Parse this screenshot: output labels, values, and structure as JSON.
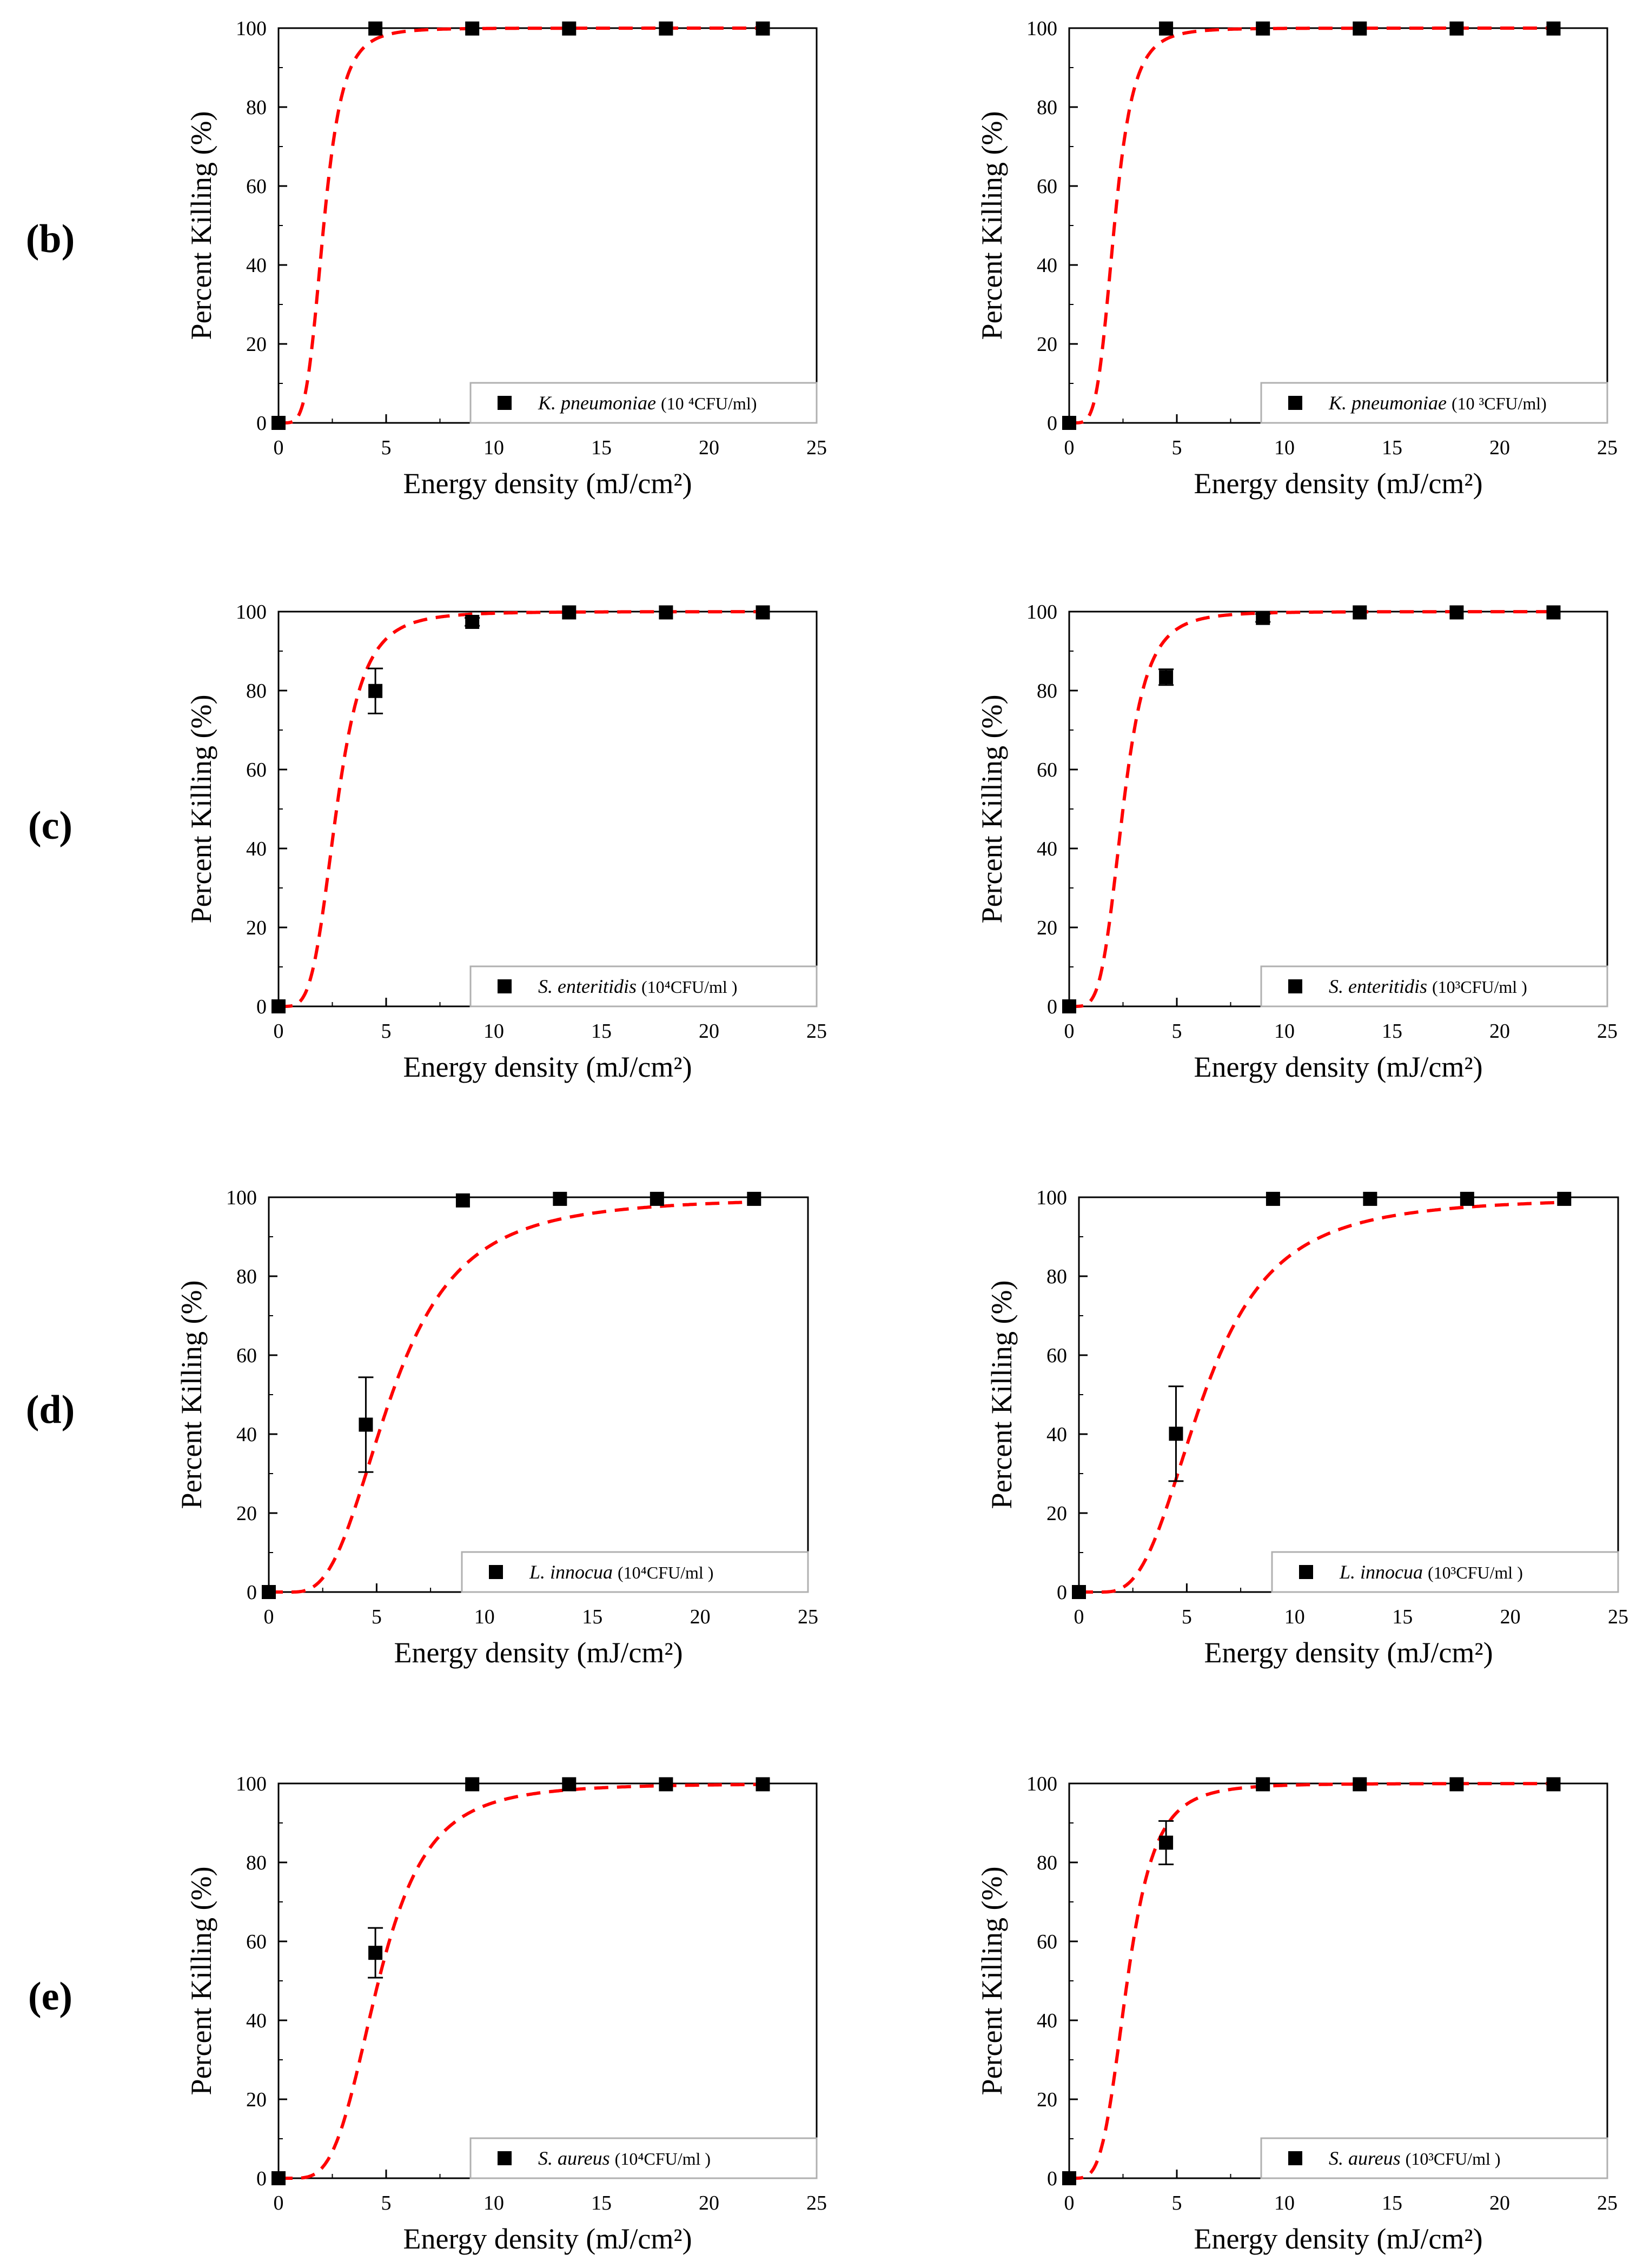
{
  "row_labels": [
    "(b)",
    "(c)",
    "(d)",
    "(e)"
  ],
  "colors": {
    "fit": "#ff0000",
    "marker": "#000000",
    "axis": "#000000",
    "legend_border": "#b0b0b0"
  },
  "chart_data": [
    {
      "type": "scatter",
      "id": "b-left",
      "row": "(b)",
      "xlabel": "Energy density (mJ/cm²)",
      "ylabel": "Percent Killing (%)",
      "xlim": [
        0,
        25
      ],
      "ylim": [
        0,
        100
      ],
      "xticks": [
        "0",
        "5",
        "10",
        "15",
        "20",
        "25"
      ],
      "yticks": [
        "0",
        "20",
        "40",
        "60",
        "80",
        "100"
      ],
      "legend": {
        "species": "K. pneumoniae",
        "conc": "(10 ⁴CFU/ml)",
        "position": "bottom-right"
      },
      "x": [
        0,
        4.5,
        9,
        13.5,
        18,
        22.5
      ],
      "y": [
        0,
        99.9,
        99.9,
        99.9,
        99.9,
        99.9
      ],
      "err": [
        0,
        0,
        0,
        0,
        0,
        0
      ],
      "fit": {
        "type": "dashed logistic",
        "x50": 2.0,
        "slope": 4.5,
        "x0": 0.1
      }
    },
    {
      "type": "scatter",
      "id": "b-right",
      "row": "(b)",
      "xlabel": "Energy density (mJ/cm²)",
      "ylabel": "Percent Killing (%)",
      "xlim": [
        0,
        25
      ],
      "ylim": [
        0,
        100
      ],
      "xticks": [
        "0",
        "5",
        "10",
        "15",
        "20",
        "25"
      ],
      "yticks": [
        "0",
        "20",
        "40",
        "60",
        "80",
        "100"
      ],
      "legend": {
        "species": "K. pneumoniae",
        "conc": "(10 ³CFU/ml)",
        "position": "bottom-right"
      },
      "x": [
        0,
        4.5,
        9,
        13.5,
        18,
        22.5
      ],
      "y": [
        0,
        99.9,
        99.9,
        99.9,
        99.9,
        99.9
      ],
      "err": [
        0,
        0,
        0,
        0,
        0,
        0
      ],
      "fit": {
        "type": "dashed logistic",
        "x50": 2.0,
        "slope": 4.5,
        "x0": 0.1
      }
    },
    {
      "type": "scatter",
      "id": "c-left",
      "row": "(c)",
      "xlabel": "Energy density (mJ/cm²)",
      "ylabel": "Percent Killing (%)",
      "xlim": [
        0,
        25
      ],
      "ylim": [
        0,
        100
      ],
      "xticks": [
        "0",
        "5",
        "10",
        "15",
        "20",
        "25"
      ],
      "yticks": [
        "0",
        "20",
        "40",
        "60",
        "80",
        "100"
      ],
      "legend": {
        "species": "S. enteritidis",
        "conc": "(10⁴CFU/ml )",
        "position": "bottom-right"
      },
      "x": [
        0,
        4.5,
        9,
        13.5,
        18,
        22.5
      ],
      "y": [
        0,
        79.9,
        97.4,
        99.8,
        99.8,
        99.8
      ],
      "err": [
        0,
        5.7,
        1.0,
        0,
        0,
        0
      ],
      "fit": {
        "type": "dashed logistic",
        "x50": 2.6,
        "slope": 4.1,
        "x0": 0.1
      }
    },
    {
      "type": "scatter",
      "id": "c-right",
      "row": "(c)",
      "xlabel": "Energy density (mJ/cm²)",
      "ylabel": "Percent Killing (%)",
      "xlim": [
        0,
        25
      ],
      "ylim": [
        0,
        100
      ],
      "xticks": [
        "0",
        "5",
        "10",
        "15",
        "20",
        "25"
      ],
      "yticks": [
        "0",
        "20",
        "40",
        "60",
        "80",
        "100"
      ],
      "legend": {
        "species": "S. enteritidis",
        "conc": "(10³CFU/ml )",
        "position": "bottom-right"
      },
      "x": [
        0,
        4.5,
        9,
        13.5,
        18,
        22.5
      ],
      "y": [
        0,
        83.4,
        98.4,
        99.8,
        99.8,
        99.8
      ],
      "err": [
        0,
        2.0,
        1.0,
        0,
        0,
        0
      ],
      "fit": {
        "type": "dashed logistic",
        "x50": 2.4,
        "slope": 4.3,
        "x0": 0.1
      }
    },
    {
      "type": "scatter",
      "id": "d-left",
      "row": "(d)",
      "xlabel": "Energy density (mJ/cm²)",
      "ylabel": "Percent Killing (%)",
      "xlim": [
        0,
        25
      ],
      "ylim": [
        0,
        100
      ],
      "xticks": [
        "0",
        "5",
        "10",
        "15",
        "20",
        "25"
      ],
      "yticks": [
        "0",
        "20",
        "40",
        "60",
        "80",
        "100"
      ],
      "legend": {
        "species": "L. innocua",
        "conc": "(10⁴CFU/ml )",
        "position": "bottom-right"
      },
      "x": [
        0,
        4.5,
        9,
        13.5,
        18,
        22.5
      ],
      "y": [
        0,
        42.4,
        99.2,
        99.6,
        99.6,
        99.6
      ],
      "err": [
        0,
        12.0,
        0,
        0,
        0,
        0
      ],
      "fit": {
        "type": "dashed logistic",
        "x50": 4.7,
        "slope": 2.9,
        "x0": 1.0
      }
    },
    {
      "type": "scatter",
      "id": "d-right",
      "row": "(d)",
      "xlabel": "Energy density (mJ/cm²)",
      "ylabel": "Percent Killing (%)",
      "xlim": [
        0,
        25
      ],
      "ylim": [
        0,
        100
      ],
      "xticks": [
        "0",
        "5",
        "10",
        "15",
        "20",
        "25"
      ],
      "yticks": [
        "0",
        "20",
        "40",
        "60",
        "80",
        "100"
      ],
      "legend": {
        "species": "L. innocua",
        "conc": "(10³CFU/ml )",
        "position": "bottom-right"
      },
      "x": [
        0,
        4.5,
        9,
        13.5,
        18,
        22.5
      ],
      "y": [
        0,
        40.1,
        99.6,
        99.6,
        99.6,
        99.6
      ],
      "err": [
        0,
        12.0,
        0,
        0,
        0,
        0
      ],
      "fit": {
        "type": "dashed logistic",
        "x50": 4.8,
        "slope": 2.9,
        "x0": 1.0
      }
    },
    {
      "type": "scatter",
      "id": "e-left",
      "row": "(e)",
      "xlabel": "Energy density (mJ/cm²)",
      "ylabel": "Percent Killing (%)",
      "xlim": [
        0,
        25
      ],
      "ylim": [
        0,
        100
      ],
      "xticks": [
        "0",
        "5",
        "10",
        "15",
        "20",
        "25"
      ],
      "yticks": [
        "0",
        "20",
        "40",
        "60",
        "80",
        "100"
      ],
      "legend": {
        "species": "S. aureus",
        "conc": "(10⁴CFU/ml )",
        "position": "bottom-right"
      },
      "x": [
        0,
        4.5,
        9,
        13.5,
        18,
        22.5
      ],
      "y": [
        0,
        57.1,
        99.8,
        99.8,
        99.8,
        99.8
      ],
      "err": [
        0,
        6.3,
        0,
        0,
        0,
        0
      ],
      "fit": {
        "type": "dashed logistic",
        "x50": 4.15,
        "slope": 3.6,
        "x0": 0.5
      }
    },
    {
      "type": "scatter",
      "id": "e-right",
      "row": "(e)",
      "xlabel": "Energy density (mJ/cm²)",
      "ylabel": "Percent Killing (%)",
      "xlim": [
        0,
        25
      ],
      "ylim": [
        0,
        100
      ],
      "xticks": [
        "0",
        "5",
        "10",
        "15",
        "20",
        "25"
      ],
      "yticks": [
        "0",
        "20",
        "40",
        "60",
        "80",
        "100"
      ],
      "legend": {
        "species": "S. aureus",
        "conc": "(10³CFU/ml )",
        "position": "bottom-right"
      },
      "x": [
        0,
        4.5,
        9,
        13.5,
        18,
        22.5
      ],
      "y": [
        0,
        85.0,
        99.8,
        99.8,
        99.8,
        99.8
      ],
      "err": [
        0,
        5.5,
        0,
        0,
        0,
        0
      ],
      "fit": {
        "type": "dashed logistic",
        "x50": 2.6,
        "slope": 4.0,
        "x0": 0.1
      }
    }
  ]
}
